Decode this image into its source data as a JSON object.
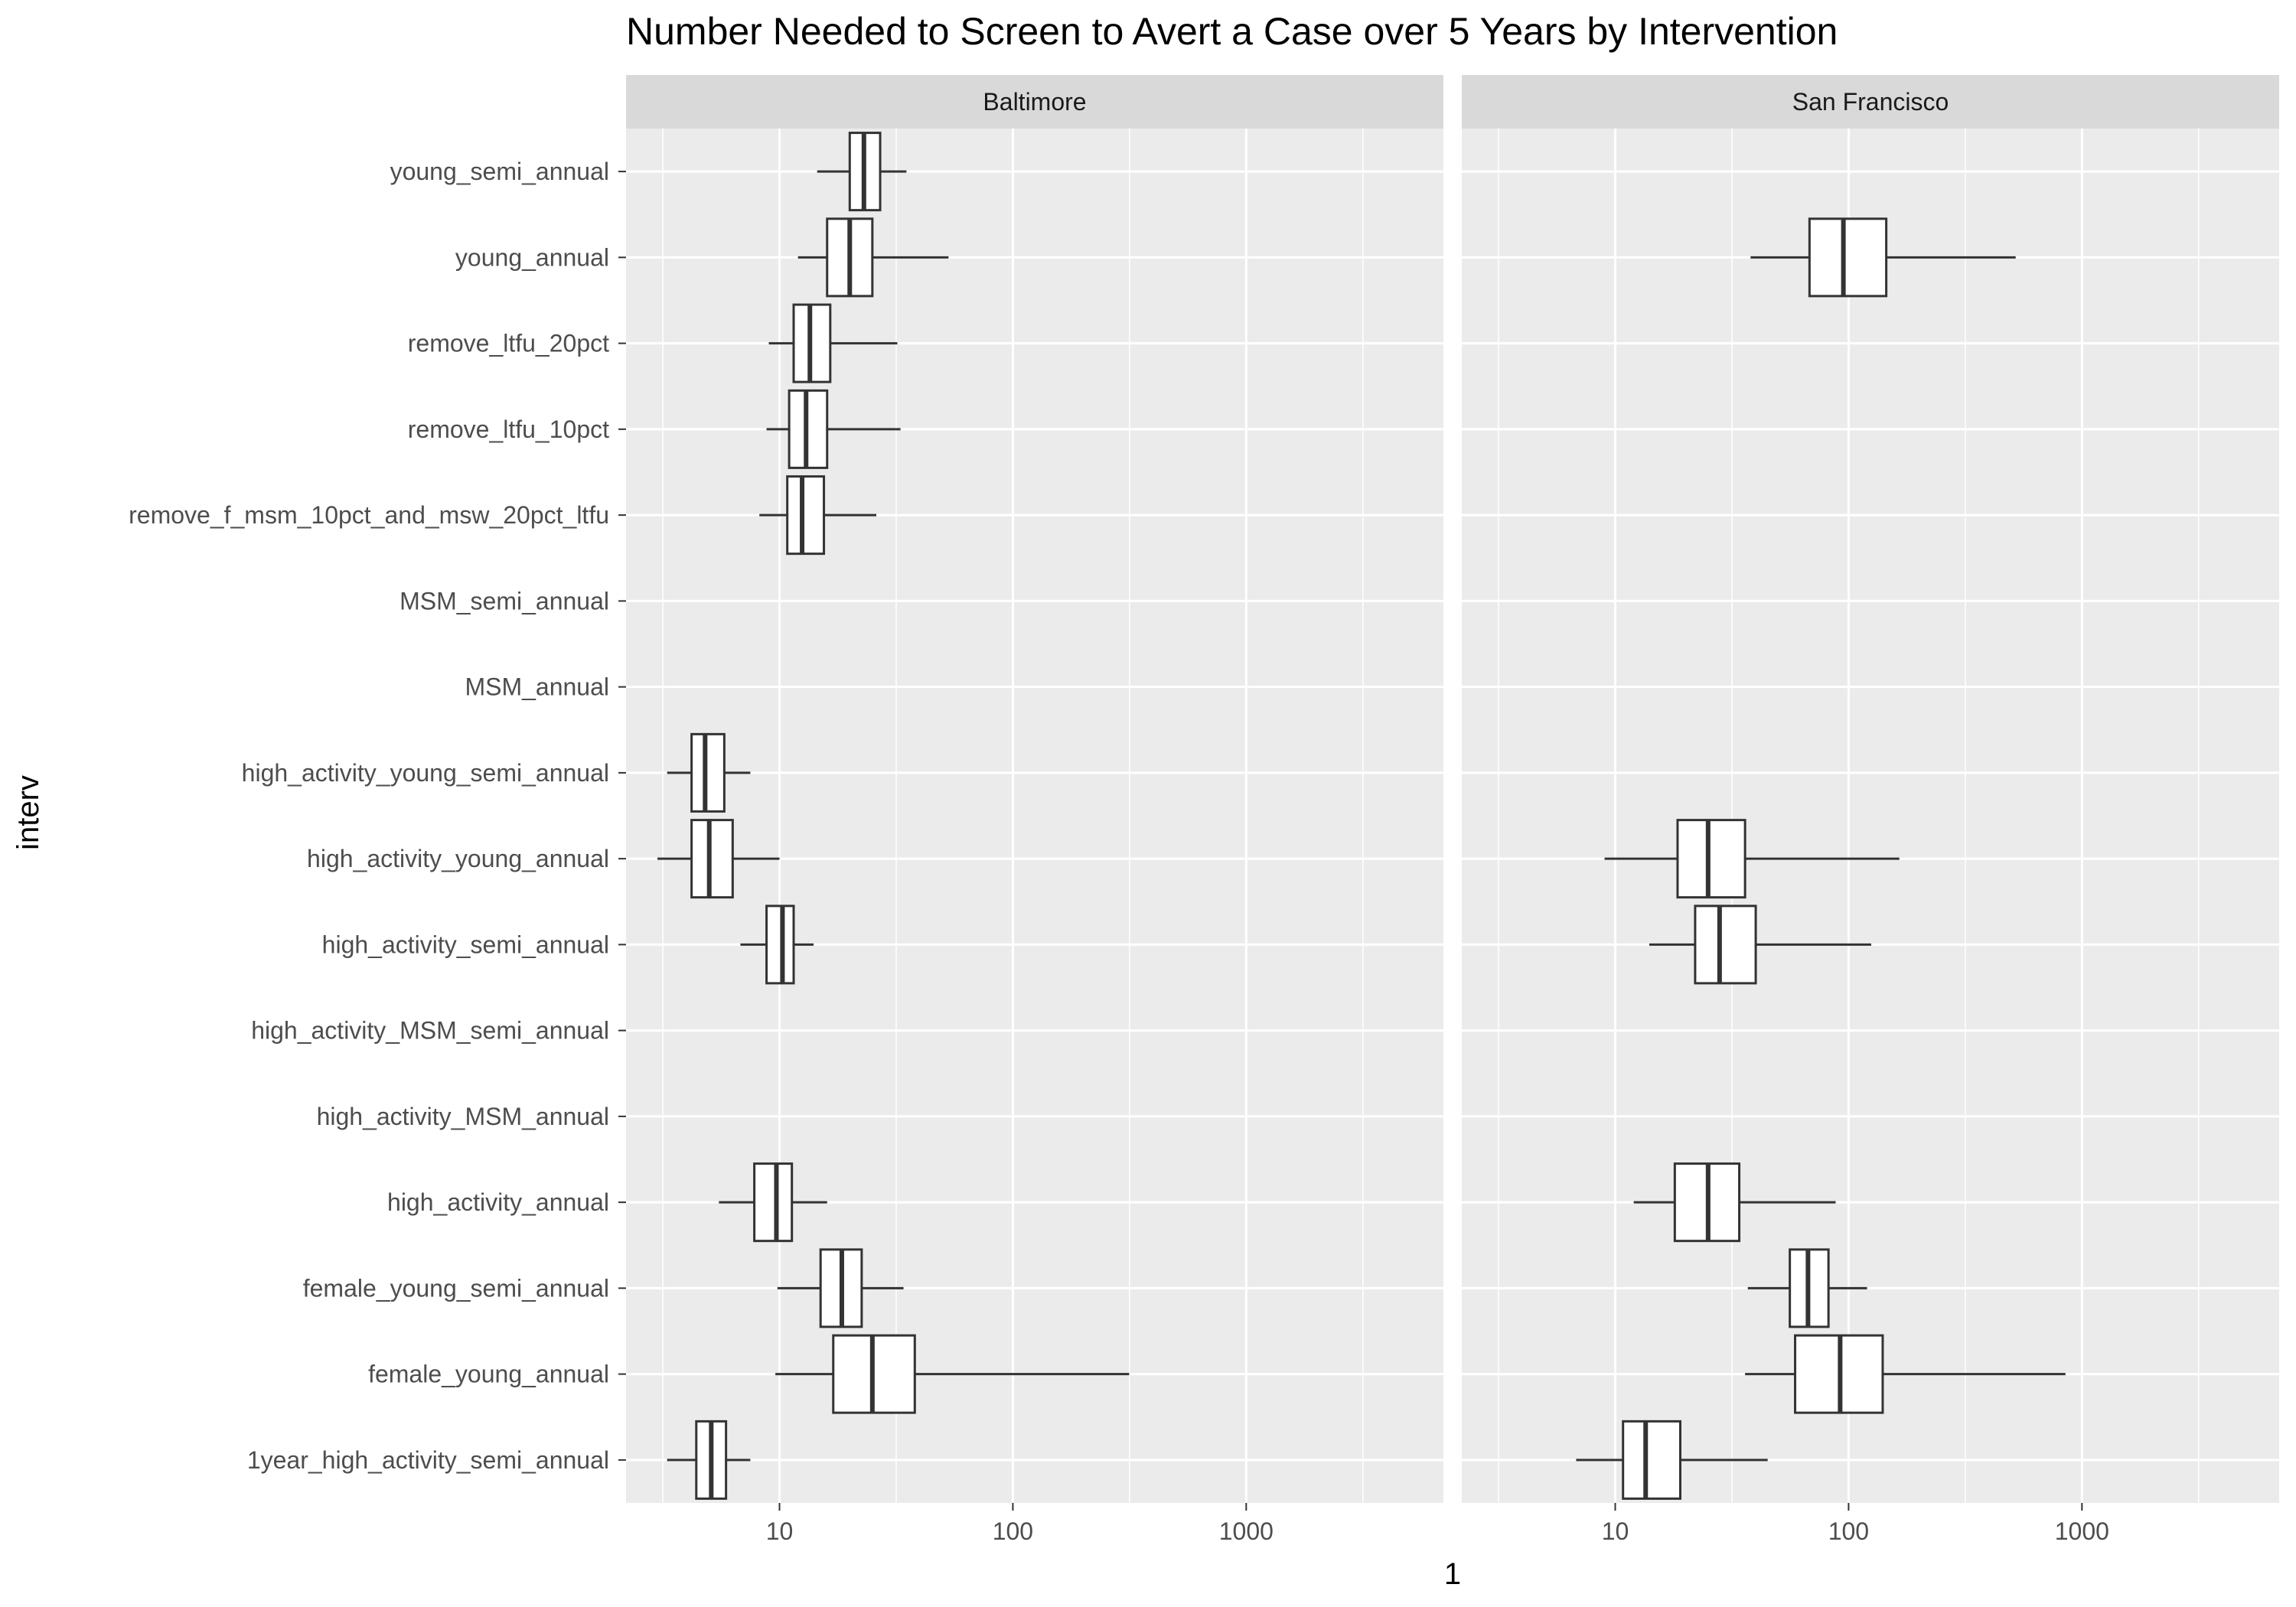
{
  "chart_data": {
    "type": "boxplot",
    "orientation": "horizontal",
    "title": "Number Needed to Screen to Avert a Case over 5 Years by Intervention",
    "xlabel": "1",
    "ylabel": "interv",
    "x_scale": "log10",
    "xlim": [
      2.2,
      7000
    ],
    "x_ticks": [
      10,
      100,
      1000
    ],
    "x_tick_labels": [
      "10",
      "100",
      "1000"
    ],
    "grid": true,
    "categories": [
      "young_semi_annual",
      "young_annual",
      "remove_ltfu_20pct",
      "remove_ltfu_10pct",
      "remove_f_msm_10pct_and_msw_20pct_ltfu",
      "MSM_semi_annual",
      "MSM_annual",
      "high_activity_young_semi_annual",
      "high_activity_young_annual",
      "high_activity_semi_annual",
      "high_activity_MSM_semi_annual",
      "high_activity_MSM_annual",
      "high_activity_annual",
      "female_young_semi_annual",
      "female_young_annual",
      "1year_high_activity_semi_annual"
    ],
    "panels": [
      {
        "strip": "Baltimore",
        "boxes": [
          {
            "category": "young_semi_annual",
            "whisker_low": 14.5,
            "q1": 20,
            "median": 23,
            "q3": 27,
            "whisker_high": 35
          },
          {
            "category": "young_annual",
            "whisker_low": 12,
            "q1": 16,
            "median": 20,
            "q3": 25,
            "whisker_high": 53
          },
          {
            "category": "remove_ltfu_20pct",
            "whisker_low": 9,
            "q1": 11.5,
            "median": 13.5,
            "q3": 16.5,
            "whisker_high": 32
          },
          {
            "category": "remove_ltfu_10pct",
            "whisker_low": 8.8,
            "q1": 11,
            "median": 13,
            "q3": 16,
            "whisker_high": 33
          },
          {
            "category": "remove_f_msm_10pct_and_msw_20pct_ltfu",
            "whisker_low": 8.2,
            "q1": 10.8,
            "median": 12.5,
            "q3": 15.5,
            "whisker_high": 26
          },
          {
            "category": "high_activity_young_semi_annual",
            "whisker_low": 3.3,
            "q1": 4.2,
            "median": 4.8,
            "q3": 5.8,
            "whisker_high": 7.5
          },
          {
            "category": "high_activity_young_annual",
            "whisker_low": 3,
            "q1": 4.2,
            "median": 5,
            "q3": 6.3,
            "whisker_high": 10
          },
          {
            "category": "high_activity_semi_annual",
            "whisker_low": 6.8,
            "q1": 8.8,
            "median": 10.3,
            "q3": 11.5,
            "whisker_high": 14
          },
          {
            "category": "high_activity_annual",
            "whisker_low": 5.5,
            "q1": 7.8,
            "median": 9.7,
            "q3": 11.3,
            "whisker_high": 16
          },
          {
            "category": "female_young_semi_annual",
            "whisker_low": 9.8,
            "q1": 15,
            "median": 18.5,
            "q3": 22.5,
            "whisker_high": 34
          },
          {
            "category": "female_young_annual",
            "whisker_low": 9.6,
            "q1": 17,
            "median": 25,
            "q3": 38,
            "whisker_high": 315
          },
          {
            "category": "1year_high_activity_semi_annual",
            "whisker_low": 3.3,
            "q1": 4.4,
            "median": 5.1,
            "q3": 5.9,
            "whisker_high": 7.5
          }
        ]
      },
      {
        "strip": "San Francisco",
        "boxes": [
          {
            "category": "young_annual",
            "whisker_low": 38,
            "q1": 68,
            "median": 95,
            "q3": 145,
            "whisker_high": 520
          },
          {
            "category": "high_activity_young_annual",
            "whisker_low": 9,
            "q1": 18.5,
            "median": 25,
            "q3": 36,
            "whisker_high": 165
          },
          {
            "category": "high_activity_semi_annual",
            "whisker_low": 14,
            "q1": 22,
            "median": 28,
            "q3": 40,
            "whisker_high": 125
          },
          {
            "category": "high_activity_annual",
            "whisker_low": 12,
            "q1": 18,
            "median": 25,
            "q3": 34,
            "whisker_high": 88
          },
          {
            "category": "female_young_semi_annual",
            "whisker_low": 37,
            "q1": 56,
            "median": 67,
            "q3": 82,
            "whisker_high": 120
          },
          {
            "category": "female_young_annual",
            "whisker_low": 36,
            "q1": 59,
            "median": 92,
            "q3": 140,
            "whisker_high": 850
          },
          {
            "category": "1year_high_activity_semi_annual",
            "whisker_low": 6.8,
            "q1": 10.8,
            "median": 13.5,
            "q3": 19,
            "whisker_high": 45
          }
        ]
      }
    ]
  }
}
